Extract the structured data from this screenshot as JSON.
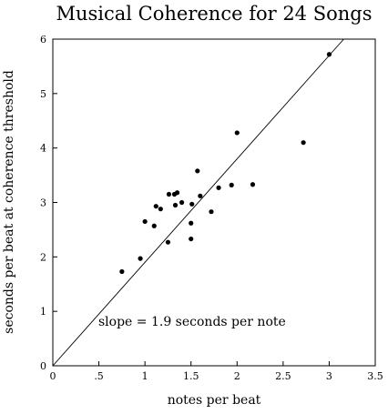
{
  "chart_data": {
    "type": "scatter",
    "title": "Musical Coherence for 24 Songs",
    "xlabel": "notes per beat",
    "ylabel": "seconds per beat at coherence threshold",
    "xlim": [
      0,
      3.5
    ],
    "ylim": [
      0,
      6
    ],
    "x_ticks": [
      "0",
      ".5",
      "1",
      "1.5",
      "2",
      "2.5",
      "3",
      "3.5"
    ],
    "y_ticks": [
      "0",
      "1",
      "2",
      "3",
      "4",
      "5",
      "6"
    ],
    "grid": false,
    "legend": "none",
    "annotation": "slope = 1.9 seconds per note",
    "fit_line": {
      "slope": 1.9,
      "intercept": 0
    },
    "series": [
      {
        "points": [
          {
            "x": 0.75,
            "y": 1.73
          },
          {
            "x": 0.95,
            "y": 1.97
          },
          {
            "x": 1.0,
            "y": 2.65
          },
          {
            "x": 1.1,
            "y": 2.57
          },
          {
            "x": 1.12,
            "y": 2.93
          },
          {
            "x": 1.17,
            "y": 2.88
          },
          {
            "x": 1.25,
            "y": 2.27
          },
          {
            "x": 1.26,
            "y": 3.15
          },
          {
            "x": 1.32,
            "y": 3.15
          },
          {
            "x": 1.33,
            "y": 2.95
          },
          {
            "x": 1.35,
            "y": 3.18
          },
          {
            "x": 1.4,
            "y": 3.0
          },
          {
            "x": 1.5,
            "y": 2.33
          },
          {
            "x": 1.5,
            "y": 2.62
          },
          {
            "x": 1.51,
            "y": 2.97
          },
          {
            "x": 1.57,
            "y": 3.58
          },
          {
            "x": 1.6,
            "y": 3.12
          },
          {
            "x": 1.72,
            "y": 2.83
          },
          {
            "x": 1.8,
            "y": 3.27
          },
          {
            "x": 1.94,
            "y": 3.32
          },
          {
            "x": 2.0,
            "y": 4.28
          },
          {
            "x": 2.17,
            "y": 3.33
          },
          {
            "x": 2.72,
            "y": 4.1
          },
          {
            "x": 3.0,
            "y": 5.72
          }
        ]
      }
    ],
    "colors": {
      "points": "#000000",
      "line": "#000000",
      "background": "#ffffff"
    }
  }
}
